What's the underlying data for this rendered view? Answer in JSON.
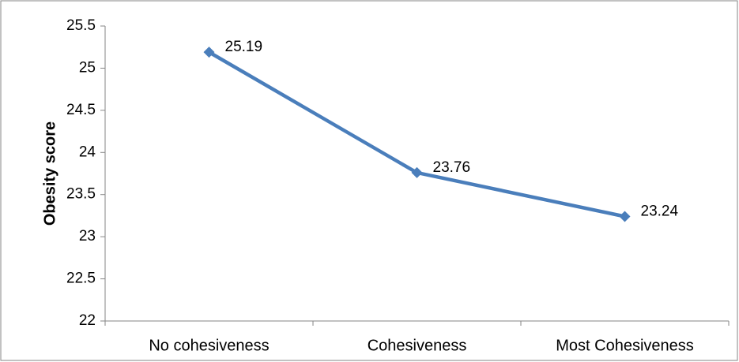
{
  "chart_data": {
    "type": "line",
    "y_label": "Obesity score",
    "categories": [
      "No cohesiveness",
      "Cohesiveness",
      "Most Cohesiveness"
    ],
    "values": [
      25.19,
      23.76,
      23.24
    ],
    "color": "#4a7ebb",
    "ylim": [
      22,
      25.5
    ],
    "yticks": [
      22,
      22.5,
      23,
      23.5,
      24,
      24.5,
      25,
      25.5
    ],
    "grid": false
  }
}
